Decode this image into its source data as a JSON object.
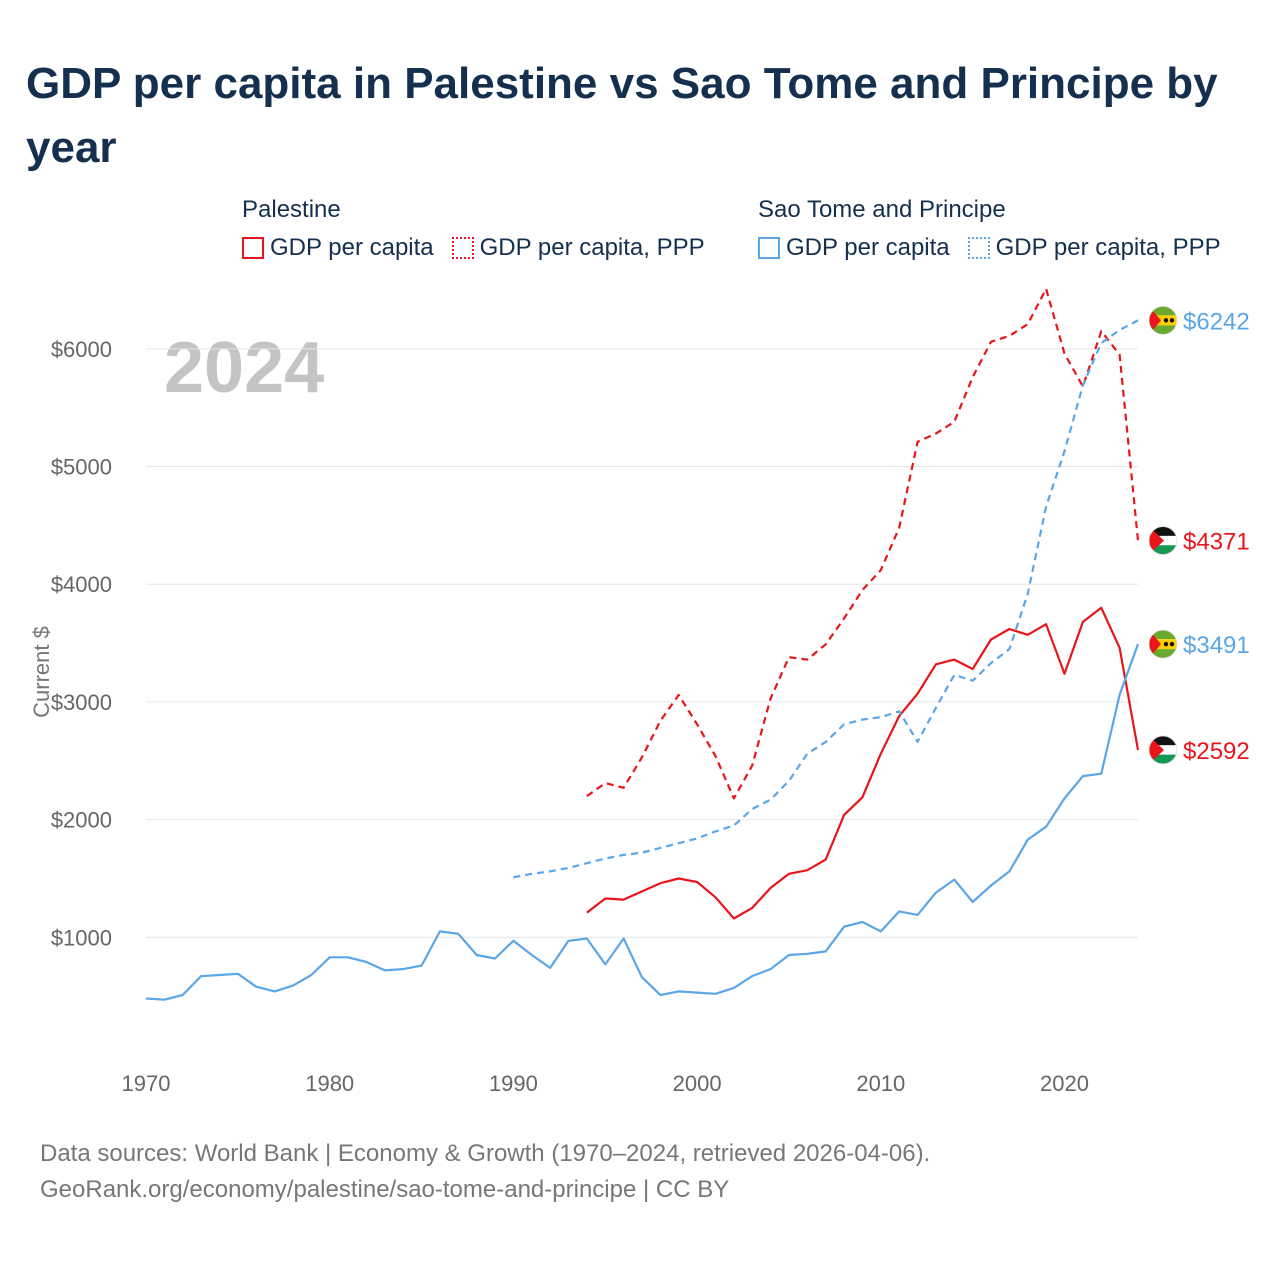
{
  "title": "GDP per capita in Palestine vs Sao Tome and Principe by year",
  "year_display": "2024",
  "legend": {
    "groups": [
      {
        "name": "Palestine",
        "items": [
          {
            "label": "GDP per capita",
            "color": "#e8151b",
            "style": "solid"
          },
          {
            "label": "GDP per capita, PPP",
            "color": "#e8151b",
            "style": "dotted"
          }
        ]
      },
      {
        "name": "Sao Tome and Principe",
        "items": [
          {
            "label": "GDP per capita",
            "color": "#5aa6e6",
            "style": "solid"
          },
          {
            "label": "GDP per capita, PPP",
            "color": "#5aa6e6",
            "style": "dotted"
          }
        ]
      }
    ]
  },
  "footer": {
    "line1": "Data sources: World Bank | Economy & Growth (1970–2024, retrieved 2026-04-06).",
    "line2": "GeoRank.org/economy/palestine/sao-tome-and-principe | CC BY"
  },
  "chart_data": {
    "type": "line",
    "title": "GDP per capita in Palestine vs Sao Tome and Principe by year",
    "xlabel": "",
    "ylabel": "Current $",
    "xlim": [
      1970,
      2024
    ],
    "ylim": [
      0,
      6500
    ],
    "x_ticks": [
      1970,
      1980,
      1990,
      2000,
      2010,
      2020
    ],
    "y_ticks": [
      1000,
      2000,
      3000,
      4000,
      5000,
      6000
    ],
    "y_tick_labels": [
      "$1000",
      "$2000",
      "$3000",
      "$4000",
      "$5000",
      "$6000"
    ],
    "grid": true,
    "series": [
      {
        "name": "Palestine GDP per capita",
        "country": "Palestine",
        "color": "#e8151b",
        "dashed": false,
        "end_label": "$2592",
        "x": [
          1994,
          1995,
          1996,
          1997,
          1998,
          1999,
          2000,
          2001,
          2002,
          2003,
          2004,
          2005,
          2006,
          2007,
          2008,
          2009,
          2010,
          2011,
          2012,
          2013,
          2014,
          2015,
          2016,
          2017,
          2018,
          2019,
          2020,
          2021,
          2022,
          2023,
          2024
        ],
        "values": [
          1210,
          1330,
          1320,
          1390,
          1460,
          1500,
          1470,
          1340,
          1160,
          1250,
          1420,
          1540,
          1570,
          1660,
          2040,
          2190,
          2560,
          2880,
          3070,
          3320,
          3360,
          3280,
          3530,
          3620,
          3570,
          3660,
          3240,
          3680,
          3800,
          3460,
          2592
        ]
      },
      {
        "name": "Palestine GDP per capita, PPP",
        "country": "Palestine",
        "color": "#e8151b",
        "dashed": true,
        "end_label": "$4371",
        "x": [
          1994,
          1995,
          1996,
          1997,
          1998,
          1999,
          2000,
          2001,
          2002,
          2003,
          2004,
          2005,
          2006,
          2007,
          2008,
          2009,
          2010,
          2011,
          2012,
          2013,
          2014,
          2015,
          2016,
          2017,
          2018,
          2019,
          2020,
          2021,
          2022,
          2023,
          2024
        ],
        "values": [
          2200,
          2310,
          2270,
          2530,
          2840,
          3060,
          2810,
          2540,
          2180,
          2460,
          3030,
          3380,
          3360,
          3490,
          3710,
          3950,
          4120,
          4480,
          5210,
          5280,
          5380,
          5760,
          6060,
          6110,
          6210,
          6510,
          5960,
          5680,
          6150,
          5950,
          4371
        ]
      },
      {
        "name": "Sao Tome and Principe GDP per capita",
        "country": "Sao Tome and Principe",
        "color": "#5aa6e6",
        "dashed": false,
        "end_label": "$3491",
        "x": [
          1970,
          1971,
          1972,
          1973,
          1974,
          1975,
          1976,
          1977,
          1978,
          1979,
          1980,
          1981,
          1982,
          1983,
          1984,
          1985,
          1986,
          1987,
          1988,
          1989,
          1990,
          1991,
          1992,
          1993,
          1994,
          1995,
          1996,
          1997,
          1998,
          1999,
          2000,
          2001,
          2002,
          2003,
          2004,
          2005,
          2006,
          2007,
          2008,
          2009,
          2010,
          2011,
          2012,
          2013,
          2014,
          2015,
          2016,
          2017,
          2018,
          2019,
          2020,
          2021,
          2022,
          2023,
          2024
        ],
        "values": [
          480,
          470,
          510,
          670,
          680,
          690,
          580,
          540,
          590,
          680,
          830,
          830,
          790,
          720,
          730,
          760,
          1050,
          1030,
          850,
          820,
          970,
          850,
          740,
          970,
          990,
          770,
          990,
          660,
          510,
          540,
          530,
          520,
          570,
          670,
          730,
          850,
          860,
          880,
          1090,
          1130,
          1050,
          1220,
          1190,
          1380,
          1490,
          1300,
          1440,
          1560,
          1830,
          1940,
          2180,
          2370,
          2390,
          3060,
          3491
        ]
      },
      {
        "name": "Sao Tome and Principe GDP per capita, PPP",
        "country": "Sao Tome and Principe",
        "color": "#5aa6e6",
        "dashed": true,
        "end_label": "$6242",
        "x": [
          1990,
          1991,
          1992,
          1993,
          1994,
          1995,
          1996,
          1997,
          1998,
          1999,
          2000,
          2001,
          2002,
          2003,
          2004,
          2005,
          2006,
          2007,
          2008,
          2009,
          2010,
          2011,
          2012,
          2013,
          2014,
          2015,
          2016,
          2017,
          2018,
          2019,
          2020,
          2021,
          2022,
          2023,
          2024
        ],
        "values": [
          1510,
          1540,
          1560,
          1590,
          1630,
          1670,
          1700,
          1720,
          1760,
          1800,
          1840,
          1900,
          1950,
          2090,
          2170,
          2330,
          2560,
          2660,
          2810,
          2850,
          2870,
          2920,
          2660,
          2950,
          3230,
          3180,
          3330,
          3450,
          3920,
          4660,
          5130,
          5690,
          6050,
          6160,
          6242
        ]
      }
    ]
  }
}
